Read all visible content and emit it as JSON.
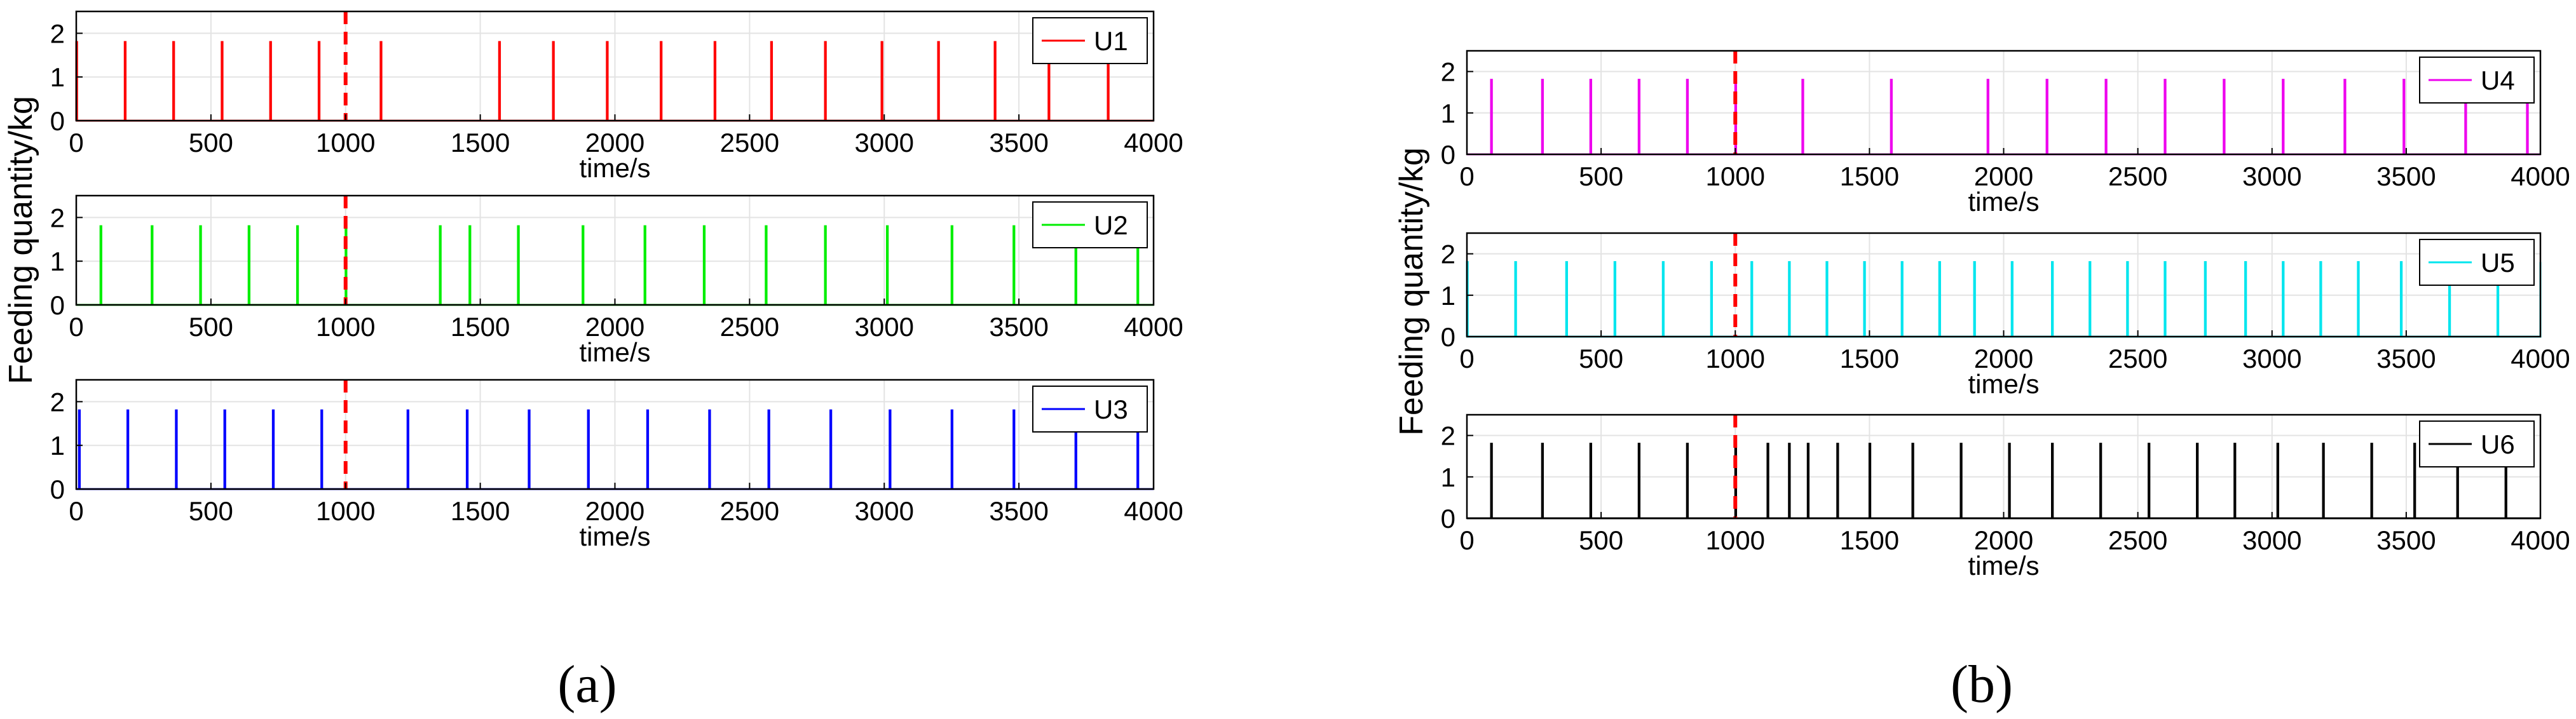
{
  "chart_data": {
    "type": "line",
    "y_axis_label": "Feeding quantity/kg",
    "xlabel": "time/s",
    "x_ticks": [
      0,
      500,
      1000,
      1500,
      2000,
      2500,
      3000,
      3500,
      4000
    ],
    "y_ticks": [
      0,
      1,
      2
    ],
    "xlim": [
      0,
      4000
    ],
    "ylim": [
      0,
      2.5
    ],
    "spike_height": 1.8,
    "marker_time": 1000,
    "marker_color": "#ff0000",
    "panel_labels": [
      "(a)",
      "(b)"
    ],
    "series": [
      {
        "name": "U1",
        "color": "#ff0000",
        "events": [
          0,
          180,
          360,
          540,
          720,
          900,
          1130,
          1570,
          1770,
          1970,
          2170,
          2370,
          2580,
          2780,
          2990,
          3200,
          3410,
          3610,
          3830
        ]
      },
      {
        "name": "U2",
        "color": "#00ee00",
        "events": [
          90,
          280,
          460,
          640,
          820,
          1000,
          1350,
          1460,
          1640,
          1880,
          2110,
          2330,
          2560,
          2780,
          3010,
          3250,
          3480,
          3710,
          3940
        ]
      },
      {
        "name": "U3",
        "color": "#0000ff",
        "events": [
          10,
          190,
          370,
          550,
          730,
          910,
          1230,
          1450,
          1680,
          1900,
          2120,
          2350,
          2570,
          2800,
          3020,
          3250,
          3480,
          3710,
          3940
        ]
      },
      {
        "name": "U4",
        "color": "#ee00ee",
        "events": [
          90,
          280,
          460,
          640,
          820,
          1000,
          1250,
          1580,
          1940,
          2160,
          2380,
          2600,
          2820,
          3040,
          3270,
          3490,
          3720,
          3950
        ]
      },
      {
        "name": "U5",
        "color": "#00e5ee",
        "events": [
          0,
          180,
          370,
          550,
          730,
          910,
          1060,
          1200,
          1340,
          1480,
          1620,
          1760,
          1890,
          2030,
          2180,
          2320,
          2460,
          2600,
          2750,
          2900,
          3040,
          3180,
          3320,
          3480,
          3660,
          3840,
          4000
        ]
      },
      {
        "name": "U6",
        "color": "#000000",
        "events": [
          90,
          280,
          460,
          640,
          820,
          1000,
          1120,
          1200,
          1270,
          1380,
          1500,
          1660,
          1840,
          2020,
          2180,
          2360,
          2540,
          2720,
          2860,
          3020,
          3190,
          3370,
          3530,
          3690,
          3870
        ]
      }
    ]
  }
}
